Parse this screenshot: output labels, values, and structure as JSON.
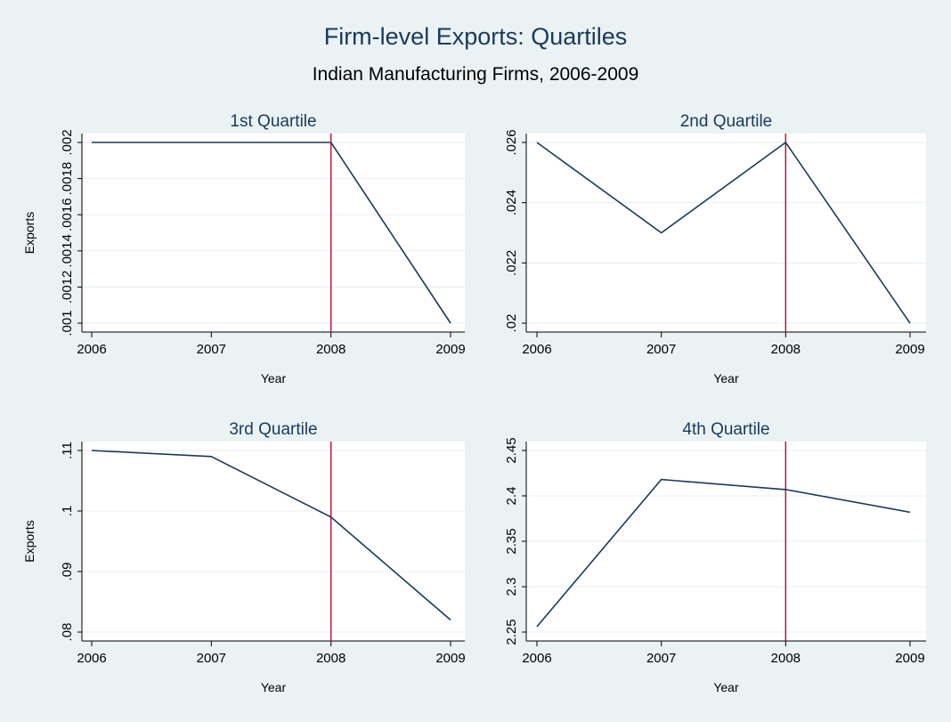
{
  "title": "Firm-level Exports: Quartiles",
  "subtitle": "Indian Manufacturing Firms, 2006-2009",
  "colors": {
    "background": "#eaf2f3",
    "plot_area": "#ffffff",
    "line": "#1a3a5c",
    "reference_line": "#c0143c",
    "grid": "#e8eef2",
    "title": "#1a3a5c"
  },
  "chart_data": [
    {
      "type": "line",
      "title": "1st Quartile",
      "xlabel": "Year",
      "ylabel": "Exports",
      "x": [
        2006,
        2007,
        2008,
        2009
      ],
      "values": [
        0.002,
        0.002,
        0.002,
        0.001
      ],
      "xlim": [
        2006,
        2009
      ],
      "ylim": [
        0.001,
        0.002
      ],
      "yticks": [
        0.001,
        0.0012,
        0.0014,
        0.0016,
        0.0018,
        0.002
      ],
      "ytick_labels": [
        ".001",
        ".0012",
        ".0014",
        ".0016",
        ".0018",
        ".002"
      ],
      "xticks": [
        2006,
        2007,
        2008,
        2009
      ],
      "xtick_labels": [
        "2006",
        "2007",
        "2008",
        "2009"
      ],
      "reference_x": 2008,
      "grid": true
    },
    {
      "type": "line",
      "title": "2nd Quartile",
      "xlabel": "Year",
      "ylabel": "",
      "x": [
        2006,
        2007,
        2008,
        2009
      ],
      "values": [
        0.026,
        0.023,
        0.026,
        0.02
      ],
      "xlim": [
        2006,
        2009
      ],
      "ylim": [
        0.02,
        0.026
      ],
      "yticks": [
        0.02,
        0.022,
        0.024,
        0.026
      ],
      "ytick_labels": [
        ".02",
        ".022",
        ".024",
        ".026"
      ],
      "xticks": [
        2006,
        2007,
        2008,
        2009
      ],
      "xtick_labels": [
        "2006",
        "2007",
        "2008",
        "2009"
      ],
      "reference_x": 2008,
      "grid": true
    },
    {
      "type": "line",
      "title": "3rd Quartile",
      "xlabel": "Year",
      "ylabel": "Exports",
      "x": [
        2006,
        2007,
        2008,
        2009
      ],
      "values": [
        0.11,
        0.109,
        0.099,
        0.082
      ],
      "xlim": [
        2006,
        2009
      ],
      "ylim": [
        0.08,
        0.11
      ],
      "yticks": [
        0.08,
        0.09,
        0.1,
        0.11
      ],
      "ytick_labels": [
        ".08",
        ".09",
        ".1",
        ".11"
      ],
      "xticks": [
        2006,
        2007,
        2008,
        2009
      ],
      "xtick_labels": [
        "2006",
        "2007",
        "2008",
        "2009"
      ],
      "reference_x": 2008,
      "grid": true
    },
    {
      "type": "line",
      "title": "4th Quartile",
      "xlabel": "Year",
      "ylabel": "",
      "x": [
        2006,
        2007,
        2008,
        2009
      ],
      "values": [
        2.256,
        2.418,
        2.407,
        2.382
      ],
      "xlim": [
        2006,
        2009
      ],
      "ylim": [
        2.25,
        2.45
      ],
      "yticks": [
        2.25,
        2.3,
        2.35,
        2.4,
        2.45
      ],
      "ytick_labels": [
        "2.25",
        "2.3",
        "2.35",
        "2.4",
        "2.45"
      ],
      "xticks": [
        2006,
        2007,
        2008,
        2009
      ],
      "xtick_labels": [
        "2006",
        "2007",
        "2008",
        "2009"
      ],
      "reference_x": 2008,
      "grid": true
    }
  ]
}
